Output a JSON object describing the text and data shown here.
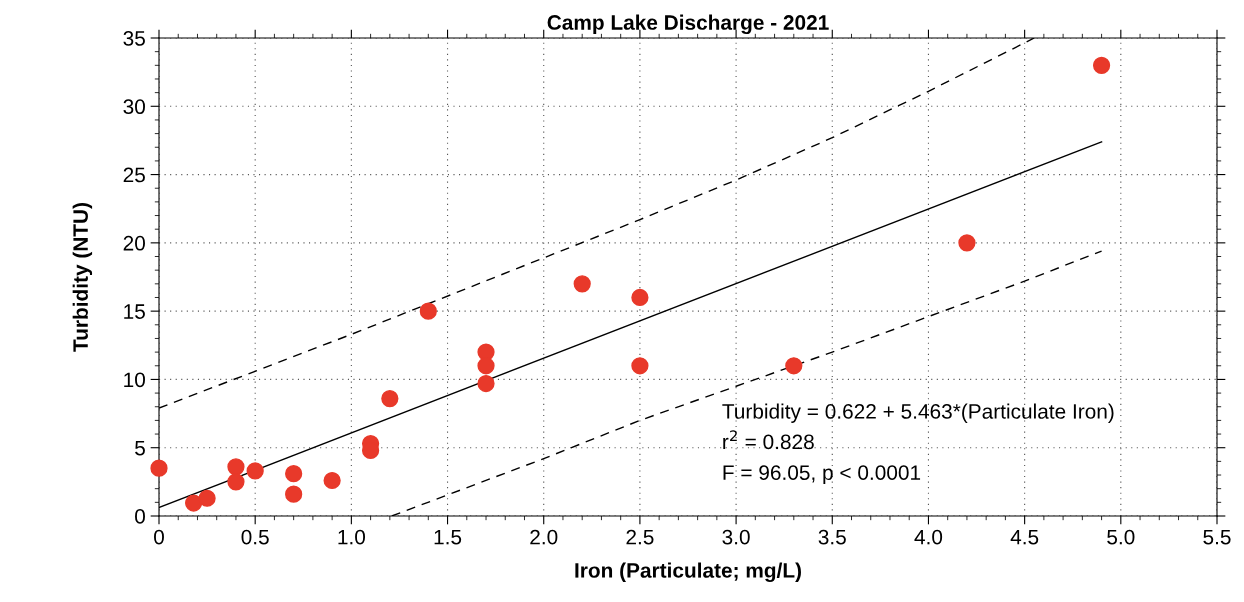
{
  "chart_data": {
    "type": "scatter",
    "title": "Camp Lake Discharge - 2021",
    "xlabel": "Iron (Particulate; mg/L)",
    "ylabel": "Turbidity (NTU)",
    "xlim": [
      0,
      5.5
    ],
    "xticks": [
      {
        "value": 0,
        "label": "0"
      },
      0.5,
      {
        "value": 1,
        "label": "1.0"
      },
      1.5,
      {
        "value": 2,
        "label": "2.0"
      },
      2.5,
      {
        "value": 3,
        "label": "3.0"
      },
      3.5,
      {
        "value": 4,
        "label": "4.0"
      },
      4.5,
      {
        "value": 5,
        "label": "5.0"
      },
      5.5
    ],
    "ylim": [
      0,
      35
    ],
    "yticks": [
      0,
      5,
      10,
      15,
      20,
      25,
      30,
      35
    ],
    "grid": true,
    "legend": false,
    "series": [
      {
        "color": "#e8392a",
        "marker": "circle",
        "x": [
          0,
          0.18,
          0.25,
          0.4,
          0.4,
          0.5,
          0.7,
          0.7,
          0.9,
          1.1,
          1.1,
          1.2,
          1.4,
          1.7,
          1.7,
          1.7,
          2.2,
          2.5,
          2.5,
          3.3,
          4.2,
          4.9
        ],
        "values": [
          3.5,
          0.95,
          1.3,
          3.6,
          2.5,
          3.3,
          3.1,
          1.6,
          2.6,
          5.3,
          4.8,
          8.6,
          15,
          12,
          11,
          9.7,
          17,
          16,
          11,
          11,
          20,
          33
        ]
      },
      {
        "type": "line",
        "color": "#000000",
        "line_style": "solid",
        "marker": "none",
        "x": [
          0,
          4.9
        ],
        "values": [
          0.62,
          27.4
        ]
      },
      {
        "type": "line",
        "color": "#000000",
        "line_style": "dashed",
        "marker": "none",
        "x": [
          0,
          1,
          2,
          2.5,
          3,
          3.5,
          4,
          4.55
        ],
        "values": [
          7.9,
          13.3,
          18.9,
          21.7,
          24.6,
          27.7,
          31.1,
          35.0
        ]
      },
      {
        "type": "line",
        "color": "#000000",
        "line_style": "dashed",
        "marker": "none",
        "x": [
          1.21,
          2,
          2.5,
          3,
          3.5,
          4,
          4.5,
          4.9
        ],
        "values": [
          0,
          4.2,
          7.0,
          9.5,
          12.0,
          14.6,
          17.2,
          19.4
        ]
      }
    ],
    "annotations": [
      "Turbidity = 0.622 + 5.463*(Particulate Iron)",
      "r$^{2}$ = 0.828",
      "F = 96.05, p < 0.0001"
    ]
  }
}
